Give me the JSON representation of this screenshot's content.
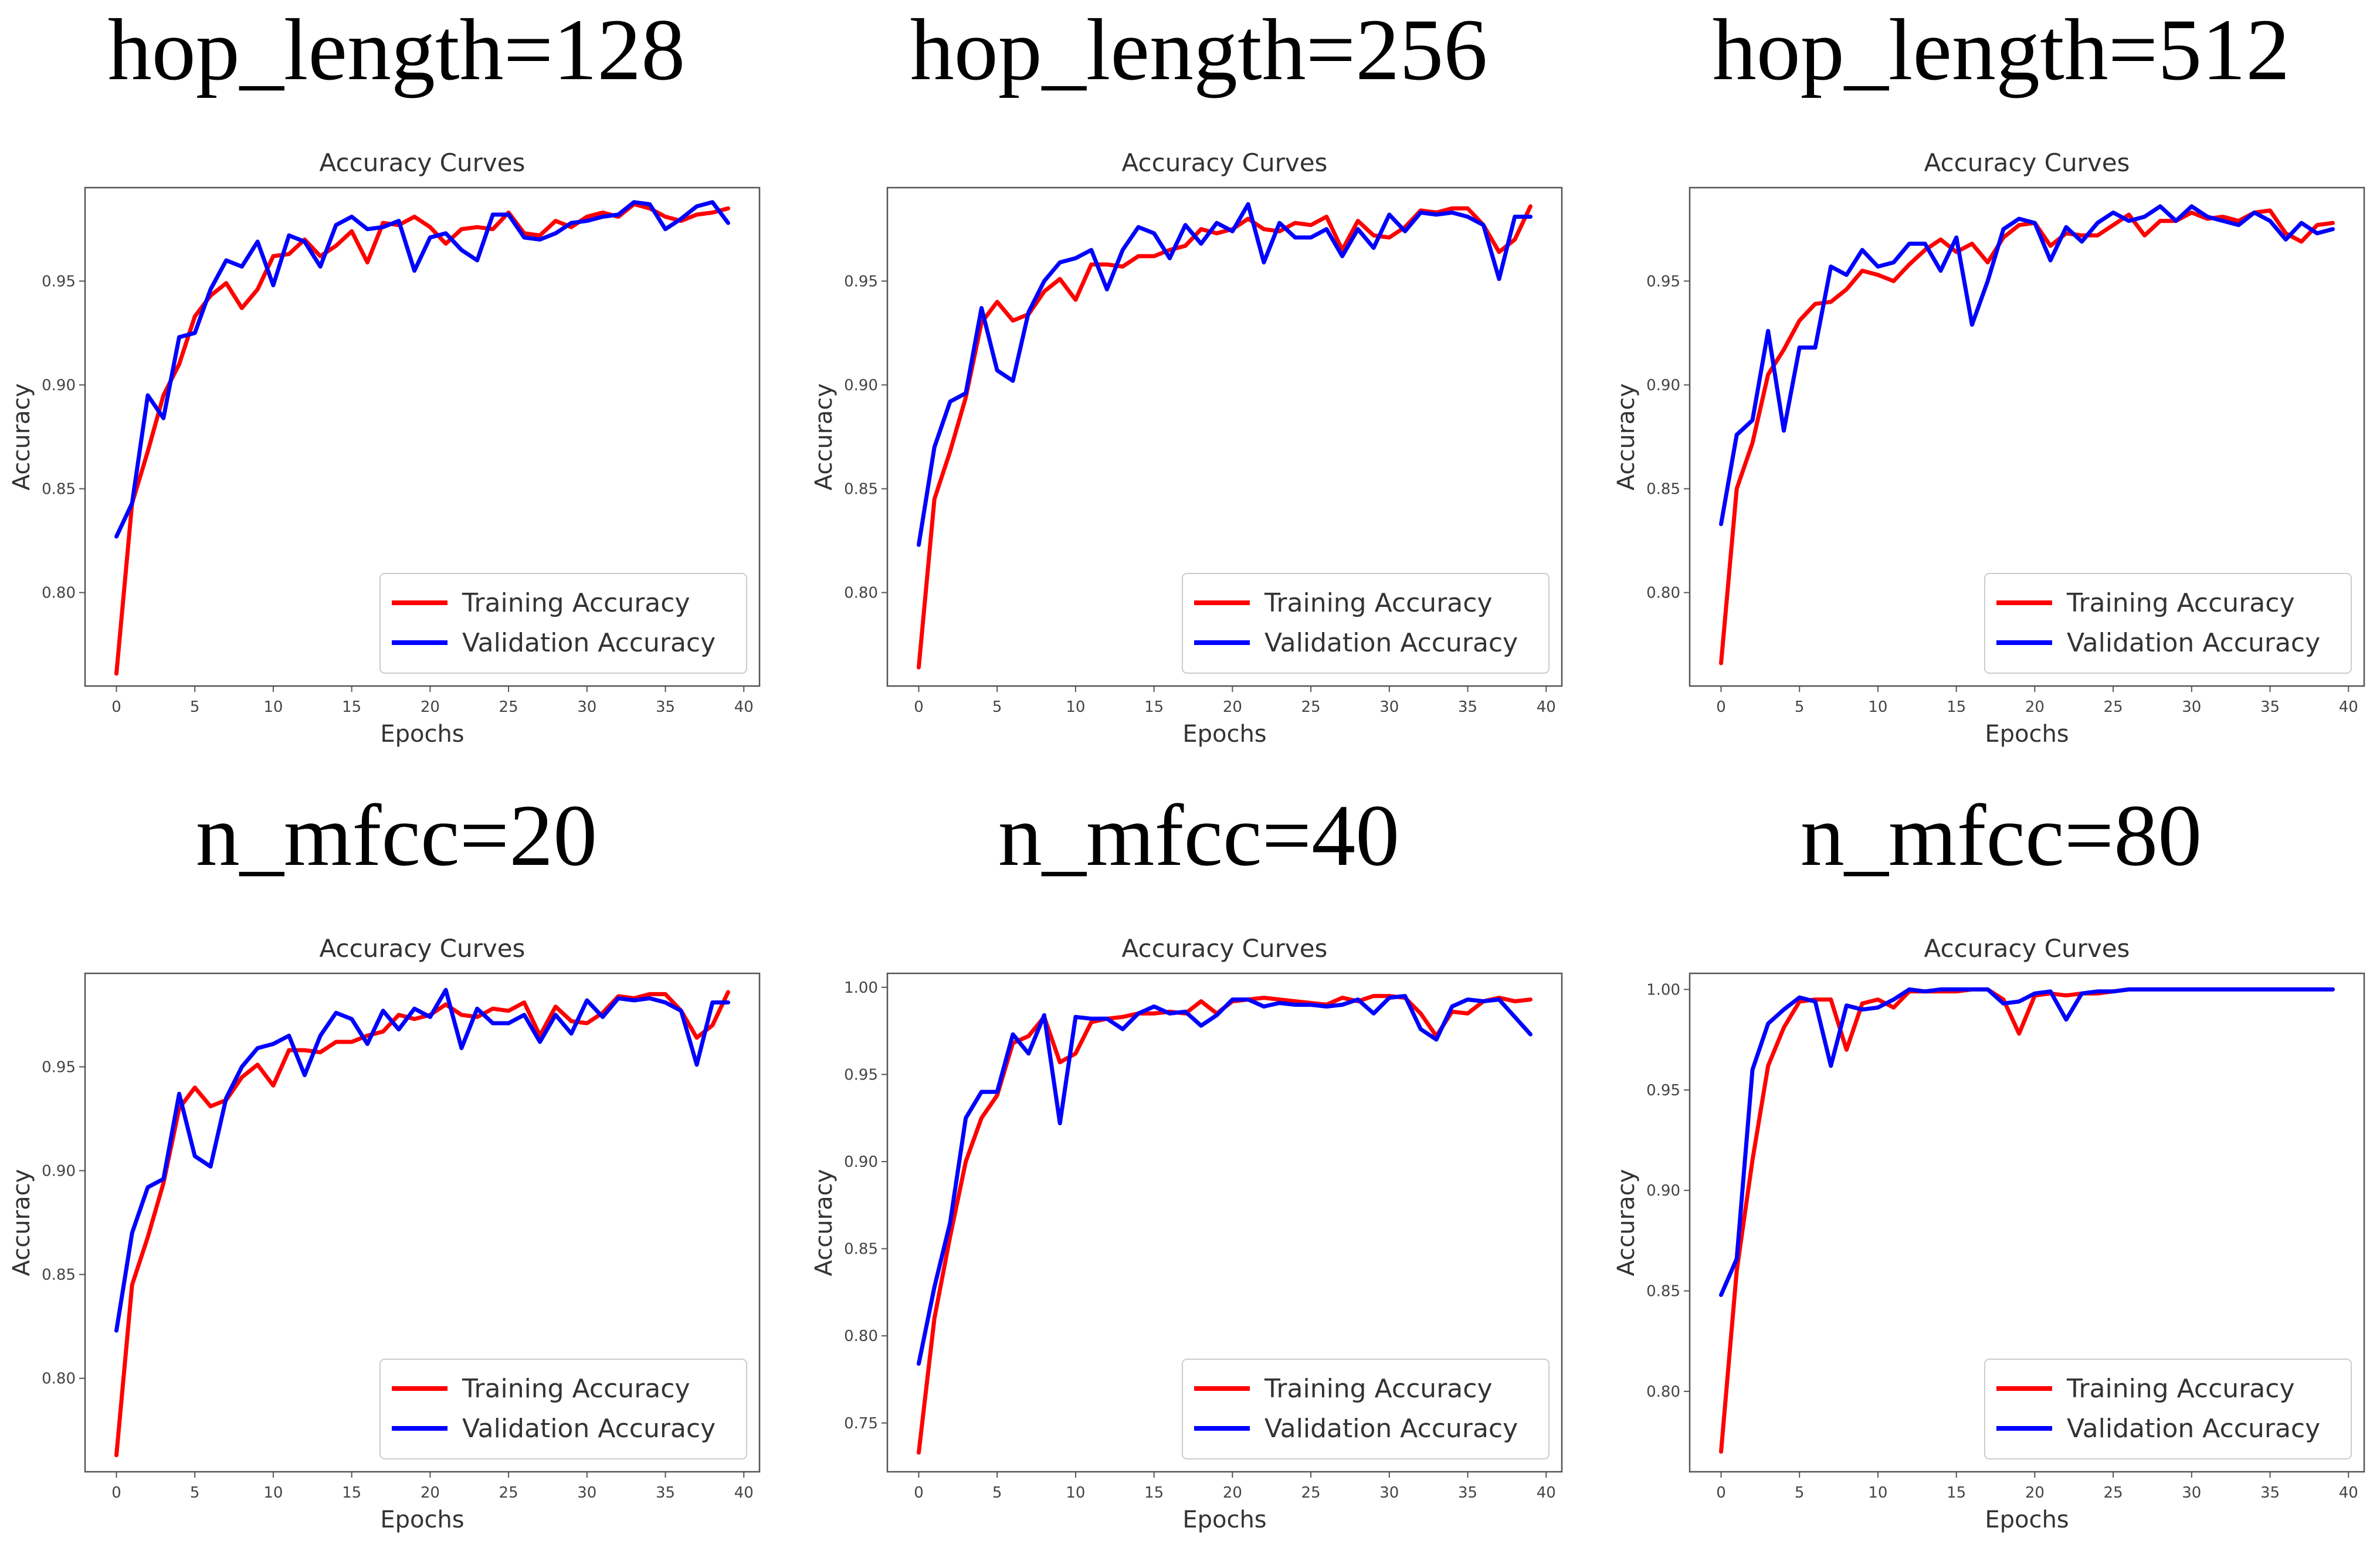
{
  "colors": {
    "training": "#ff0000",
    "validation": "#0000ff",
    "frame": "#555555"
  },
  "chart_data": [
    {
      "type": "line",
      "panel_title": "hop_length=128",
      "title": "Accuracy Curves",
      "xlabel": "Epochs",
      "ylabel": "Accuracy",
      "xlim": [
        -2,
        41
      ],
      "ylim": [
        0.755,
        0.995
      ],
      "xticks": [
        0,
        5,
        10,
        15,
        20,
        25,
        30,
        35,
        40
      ],
      "yticks": [
        0.8,
        0.85,
        0.9,
        0.95
      ],
      "legend": "lower-right",
      "x": [
        0,
        1,
        2,
        3,
        4,
        5,
        6,
        7,
        8,
        9,
        10,
        11,
        12,
        13,
        14,
        15,
        16,
        17,
        18,
        19,
        20,
        21,
        22,
        23,
        24,
        25,
        26,
        27,
        28,
        29,
        30,
        31,
        32,
        33,
        34,
        35,
        36,
        37,
        38,
        39
      ],
      "series": [
        {
          "name": "Training Accuracy",
          "color": "#ff0000",
          "values": [
            0.761,
            0.843,
            0.868,
            0.895,
            0.91,
            0.933,
            0.943,
            0.949,
            0.937,
            0.946,
            0.962,
            0.963,
            0.97,
            0.962,
            0.967,
            0.974,
            0.959,
            0.978,
            0.977,
            0.981,
            0.976,
            0.968,
            0.975,
            0.976,
            0.975,
            0.983,
            0.973,
            0.972,
            0.979,
            0.976,
            0.981,
            0.983,
            0.981,
            0.987,
            0.985,
            0.981,
            0.979,
            0.982,
            0.983,
            0.985
          ]
        },
        {
          "name": "Validation Accuracy",
          "color": "#0000ff",
          "values": [
            0.827,
            0.843,
            0.895,
            0.884,
            0.923,
            0.925,
            0.946,
            0.96,
            0.957,
            0.969,
            0.948,
            0.972,
            0.969,
            0.957,
            0.977,
            0.981,
            0.975,
            0.976,
            0.979,
            0.955,
            0.971,
            0.973,
            0.965,
            0.96,
            0.982,
            0.982,
            0.971,
            0.97,
            0.973,
            0.978,
            0.979,
            0.981,
            0.982,
            0.988,
            0.987,
            0.975,
            0.98,
            0.986,
            0.988,
            0.978
          ]
        }
      ]
    },
    {
      "type": "line",
      "panel_title": "hop_length=256",
      "title": "Accuracy Curves",
      "xlabel": "Epochs",
      "ylabel": "Accuracy",
      "xlim": [
        -2,
        41
      ],
      "ylim": [
        0.755,
        0.995
      ],
      "xticks": [
        0,
        5,
        10,
        15,
        20,
        25,
        30,
        35,
        40
      ],
      "yticks": [
        0.8,
        0.85,
        0.9,
        0.95
      ],
      "legend": "lower-right",
      "x": [
        0,
        1,
        2,
        3,
        4,
        5,
        6,
        7,
        8,
        9,
        10,
        11,
        12,
        13,
        14,
        15,
        16,
        17,
        18,
        19,
        20,
        21,
        22,
        23,
        24,
        25,
        26,
        27,
        28,
        29,
        30,
        31,
        32,
        33,
        34,
        35,
        36,
        37,
        38,
        39
      ],
      "series": [
        {
          "name": "Training Accuracy",
          "color": "#ff0000",
          "values": [
            0.764,
            0.845,
            0.868,
            0.894,
            0.93,
            0.94,
            0.931,
            0.934,
            0.945,
            0.951,
            0.941,
            0.958,
            0.958,
            0.957,
            0.962,
            0.962,
            0.965,
            0.967,
            0.975,
            0.973,
            0.975,
            0.98,
            0.975,
            0.974,
            0.978,
            0.977,
            0.981,
            0.965,
            0.979,
            0.972,
            0.971,
            0.976,
            0.984,
            0.983,
            0.985,
            0.985,
            0.977,
            0.964,
            0.97,
            0.986
          ]
        },
        {
          "name": "Validation Accuracy",
          "color": "#0000ff",
          "values": [
            0.823,
            0.87,
            0.892,
            0.896,
            0.937,
            0.907,
            0.902,
            0.935,
            0.95,
            0.959,
            0.961,
            0.965,
            0.946,
            0.965,
            0.976,
            0.973,
            0.961,
            0.977,
            0.968,
            0.978,
            0.974,
            0.987,
            0.959,
            0.978,
            0.971,
            0.971,
            0.975,
            0.962,
            0.975,
            0.966,
            0.982,
            0.974,
            0.983,
            0.982,
            0.983,
            0.981,
            0.977,
            0.951,
            0.981,
            0.981
          ]
        }
      ]
    },
    {
      "type": "line",
      "panel_title": "hop_length=512",
      "title": "Accuracy Curves",
      "xlabel": "Epochs",
      "ylabel": "Accuracy",
      "xlim": [
        -2,
        41
      ],
      "ylim": [
        0.755,
        0.995
      ],
      "xticks": [
        0,
        5,
        10,
        15,
        20,
        25,
        30,
        35,
        40
      ],
      "yticks": [
        0.8,
        0.85,
        0.9,
        0.95
      ],
      "legend": "lower-right",
      "x": [
        0,
        1,
        2,
        3,
        4,
        5,
        6,
        7,
        8,
        9,
        10,
        11,
        12,
        13,
        14,
        15,
        16,
        17,
        18,
        19,
        20,
        21,
        22,
        23,
        24,
        25,
        26,
        27,
        28,
        29,
        30,
        31,
        32,
        33,
        34,
        35,
        36,
        37,
        38,
        39
      ],
      "series": [
        {
          "name": "Training Accuracy",
          "color": "#ff0000",
          "values": [
            0.766,
            0.85,
            0.872,
            0.905,
            0.917,
            0.931,
            0.939,
            0.94,
            0.946,
            0.955,
            0.953,
            0.95,
            0.958,
            0.965,
            0.97,
            0.964,
            0.968,
            0.959,
            0.971,
            0.977,
            0.978,
            0.967,
            0.973,
            0.972,
            0.972,
            0.977,
            0.982,
            0.972,
            0.979,
            0.979,
            0.983,
            0.98,
            0.981,
            0.979,
            0.983,
            0.984,
            0.973,
            0.969,
            0.977,
            0.978
          ]
        },
        {
          "name": "Validation Accuracy",
          "color": "#0000ff",
          "values": [
            0.833,
            0.876,
            0.883,
            0.926,
            0.878,
            0.918,
            0.918,
            0.957,
            0.953,
            0.965,
            0.957,
            0.959,
            0.968,
            0.968,
            0.955,
            0.971,
            0.929,
            0.95,
            0.975,
            0.98,
            0.978,
            0.96,
            0.976,
            0.969,
            0.978,
            0.983,
            0.979,
            0.981,
            0.986,
            0.979,
            0.986,
            0.981,
            0.979,
            0.977,
            0.983,
            0.979,
            0.97,
            0.978,
            0.973,
            0.975
          ]
        }
      ]
    },
    {
      "type": "line",
      "panel_title": "n_mfcc=20",
      "title": "Accuracy Curves",
      "xlabel": "Epochs",
      "ylabel": "Accuracy",
      "xlim": [
        -2,
        41
      ],
      "ylim": [
        0.755,
        0.995
      ],
      "xticks": [
        0,
        5,
        10,
        15,
        20,
        25,
        30,
        35,
        40
      ],
      "yticks": [
        0.8,
        0.85,
        0.9,
        0.95
      ],
      "legend": "lower-right",
      "x": [
        0,
        1,
        2,
        3,
        4,
        5,
        6,
        7,
        8,
        9,
        10,
        11,
        12,
        13,
        14,
        15,
        16,
        17,
        18,
        19,
        20,
        21,
        22,
        23,
        24,
        25,
        26,
        27,
        28,
        29,
        30,
        31,
        32,
        33,
        34,
        35,
        36,
        37,
        38,
        39
      ],
      "series": [
        {
          "name": "Training Accuracy",
          "color": "#ff0000",
          "values": [
            0.763,
            0.845,
            0.868,
            0.894,
            0.93,
            0.94,
            0.931,
            0.934,
            0.945,
            0.951,
            0.941,
            0.958,
            0.958,
            0.957,
            0.962,
            0.962,
            0.965,
            0.967,
            0.975,
            0.973,
            0.975,
            0.98,
            0.975,
            0.974,
            0.978,
            0.977,
            0.981,
            0.965,
            0.979,
            0.972,
            0.971,
            0.976,
            0.984,
            0.983,
            0.985,
            0.985,
            0.977,
            0.964,
            0.97,
            0.986
          ]
        },
        {
          "name": "Validation Accuracy",
          "color": "#0000ff",
          "values": [
            0.823,
            0.87,
            0.892,
            0.896,
            0.937,
            0.907,
            0.902,
            0.935,
            0.95,
            0.959,
            0.961,
            0.965,
            0.946,
            0.965,
            0.976,
            0.973,
            0.961,
            0.977,
            0.968,
            0.978,
            0.974,
            0.987,
            0.959,
            0.978,
            0.971,
            0.971,
            0.975,
            0.962,
            0.975,
            0.966,
            0.982,
            0.974,
            0.983,
            0.982,
            0.983,
            0.981,
            0.977,
            0.951,
            0.981,
            0.981
          ]
        }
      ]
    },
    {
      "type": "line",
      "panel_title": "n_mfcc=40",
      "title": "Accuracy Curves",
      "xlabel": "Epochs",
      "ylabel": "Accuracy",
      "xlim": [
        -2,
        41
      ],
      "ylim": [
        0.722,
        1.008
      ],
      "xticks": [
        0,
        5,
        10,
        15,
        20,
        25,
        30,
        35,
        40
      ],
      "yticks": [
        0.75,
        0.8,
        0.85,
        0.9,
        0.95,
        1.0
      ],
      "legend": "lower-right",
      "x": [
        0,
        1,
        2,
        3,
        4,
        5,
        6,
        7,
        8,
        9,
        10,
        11,
        12,
        13,
        14,
        15,
        16,
        17,
        18,
        19,
        20,
        21,
        22,
        23,
        24,
        25,
        26,
        27,
        28,
        29,
        30,
        31,
        32,
        33,
        34,
        35,
        36,
        37,
        38,
        39
      ],
      "series": [
        {
          "name": "Training Accuracy",
          "color": "#ff0000",
          "values": [
            0.733,
            0.81,
            0.857,
            0.9,
            0.925,
            0.938,
            0.968,
            0.972,
            0.983,
            0.957,
            0.962,
            0.98,
            0.982,
            0.983,
            0.985,
            0.985,
            0.986,
            0.985,
            0.992,
            0.985,
            0.992,
            0.993,
            0.994,
            0.993,
            0.992,
            0.991,
            0.99,
            0.994,
            0.992,
            0.995,
            0.995,
            0.994,
            0.985,
            0.972,
            0.986,
            0.985,
            0.992,
            0.994,
            0.992,
            0.993
          ]
        },
        {
          "name": "Validation Accuracy",
          "color": "#0000ff",
          "values": [
            0.784,
            0.828,
            0.865,
            0.925,
            0.94,
            0.94,
            0.973,
            0.962,
            0.984,
            0.922,
            0.983,
            0.982,
            0.982,
            0.976,
            0.985,
            0.989,
            0.985,
            0.986,
            0.978,
            0.984,
            0.993,
            0.993,
            0.989,
            0.991,
            0.99,
            0.99,
            0.989,
            0.99,
            0.993,
            0.985,
            0.994,
            0.995,
            0.976,
            0.97,
            0.989,
            0.993,
            0.992,
            0.993,
            0.983,
            0.973
          ]
        }
      ]
    },
    {
      "type": "line",
      "panel_title": "n_mfcc=80",
      "title": "Accuracy Curves",
      "xlabel": "Epochs",
      "ylabel": "Accuracy",
      "xlim": [
        -2,
        41
      ],
      "ylim": [
        0.76,
        1.008
      ],
      "xticks": [
        0,
        5,
        10,
        15,
        20,
        25,
        30,
        35,
        40
      ],
      "yticks": [
        0.8,
        0.85,
        0.9,
        0.95,
        1.0
      ],
      "legend": "lower-right",
      "x": [
        0,
        1,
        2,
        3,
        4,
        5,
        6,
        7,
        8,
        9,
        10,
        11,
        12,
        13,
        14,
        15,
        16,
        17,
        18,
        19,
        20,
        21,
        22,
        23,
        24,
        25,
        26,
        27,
        28,
        29,
        30,
        31,
        32,
        33,
        34,
        35,
        36,
        37,
        38,
        39
      ],
      "series": [
        {
          "name": "Training Accuracy",
          "color": "#ff0000",
          "values": [
            0.77,
            0.86,
            0.915,
            0.962,
            0.981,
            0.994,
            0.995,
            0.995,
            0.97,
            0.993,
            0.995,
            0.991,
            0.999,
            0.999,
            0.999,
            0.999,
            1.0,
            1.0,
            0.995,
            0.978,
            0.997,
            0.998,
            0.997,
            0.998,
            0.998,
            0.999,
            1.0,
            1.0,
            1.0,
            1.0,
            1.0,
            1.0,
            1.0,
            1.0,
            1.0,
            1.0,
            1.0,
            1.0,
            1.0,
            1.0
          ]
        },
        {
          "name": "Validation Accuracy",
          "color": "#0000ff",
          "values": [
            0.848,
            0.866,
            0.96,
            0.983,
            0.99,
            0.996,
            0.994,
            0.962,
            0.992,
            0.99,
            0.991,
            0.995,
            1.0,
            0.999,
            1.0,
            1.0,
            1.0,
            1.0,
            0.993,
            0.994,
            0.998,
            0.999,
            0.985,
            0.998,
            0.999,
            0.999,
            1.0,
            1.0,
            1.0,
            1.0,
            1.0,
            1.0,
            1.0,
            1.0,
            1.0,
            1.0,
            1.0,
            1.0,
            1.0,
            1.0
          ]
        }
      ]
    }
  ]
}
